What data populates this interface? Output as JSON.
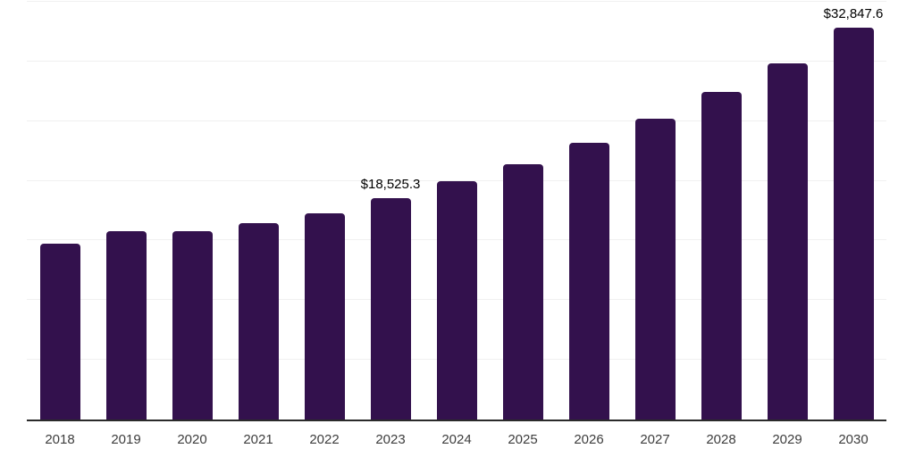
{
  "chart_data": {
    "type": "bar",
    "title": "",
    "xlabel": "",
    "ylabel": "",
    "categories": [
      "2018",
      "2019",
      "2020",
      "2021",
      "2022",
      "2023",
      "2024",
      "2025",
      "2026",
      "2027",
      "2028",
      "2029",
      "2030"
    ],
    "values": [
      14770,
      15770,
      15810,
      16440,
      17280,
      18525.3,
      19940,
      21420,
      23210,
      25190,
      27430,
      29860,
      32847.6
    ],
    "point_labels": {
      "2023": "$18,525.3",
      "2030": "$32,847.6"
    },
    "ylim": [
      0,
      35000
    ],
    "grid_step": 5000,
    "grid_on": true,
    "legend": "none",
    "y_tick_labels_visible": false,
    "bar_color": "#33114d",
    "gridline_color": "#f0f0f0",
    "axis_line_color": "#2b2b2b",
    "value_label_color": "#000000",
    "x_tick_label_color": "#3d3d3d"
  }
}
